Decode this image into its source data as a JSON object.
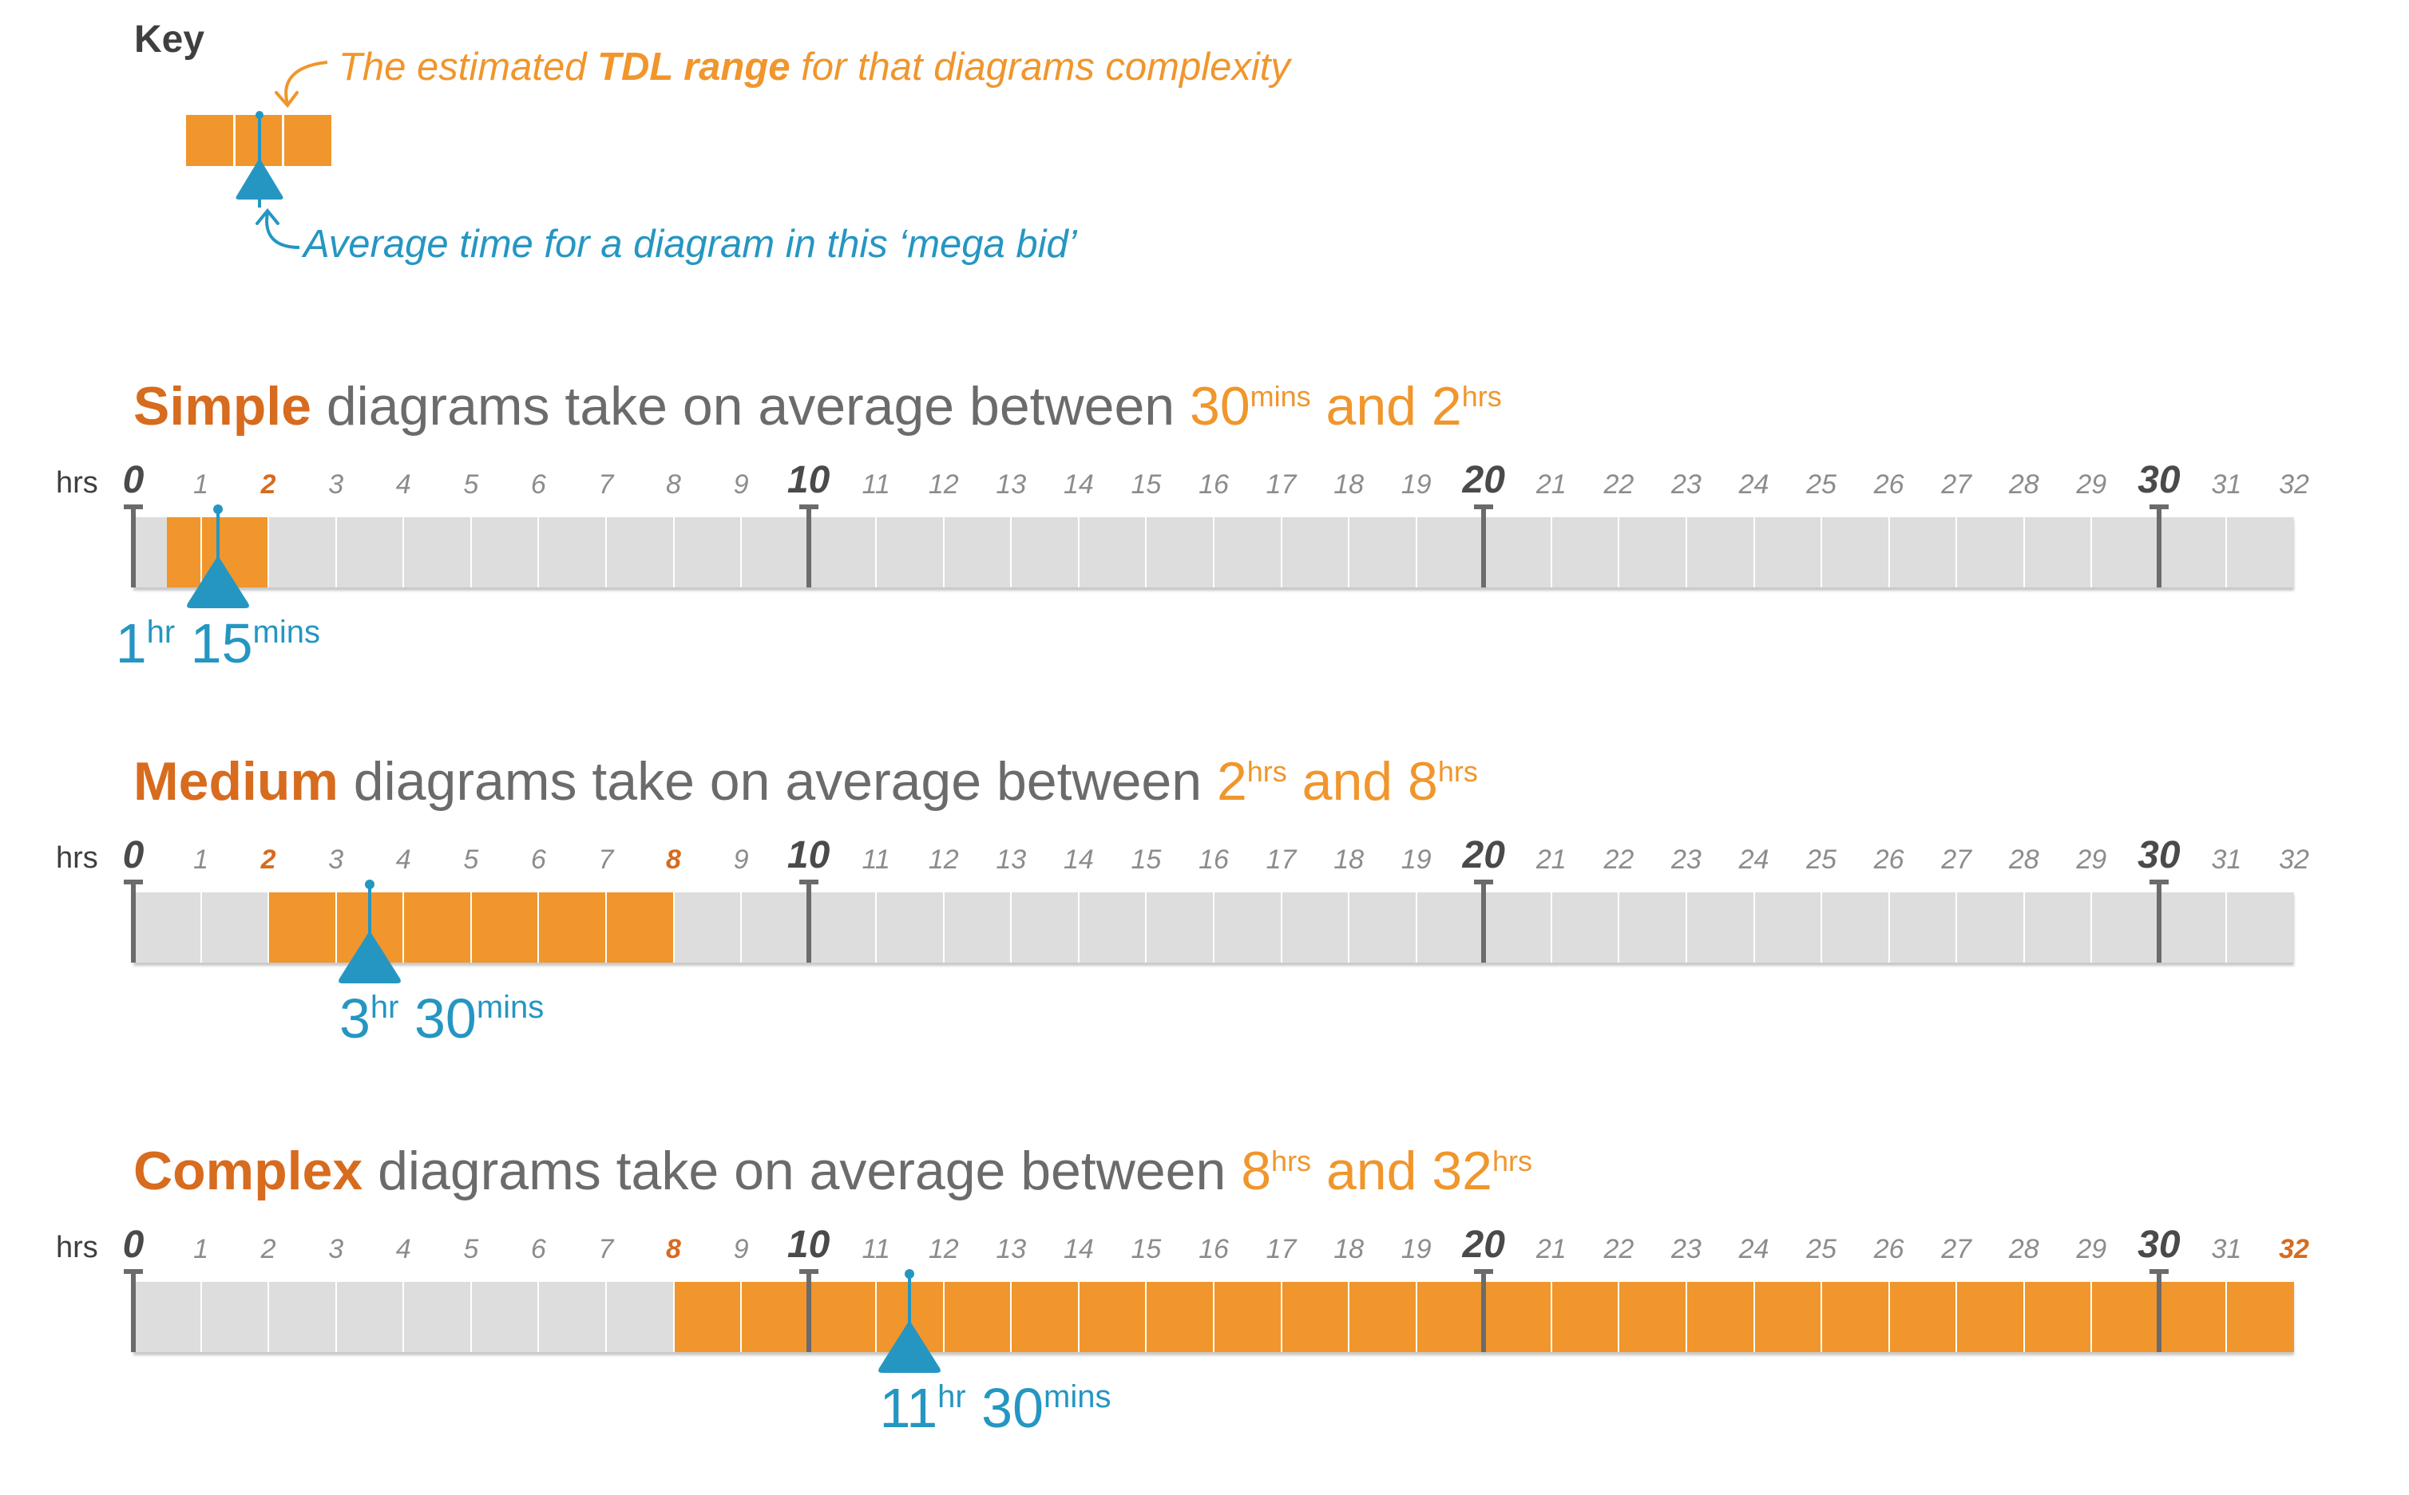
{
  "key": {
    "title": "Key",
    "range_text_pre": "The estimated ",
    "range_text_bold": "TDL range",
    "range_text_post": " for that diagrams complexity",
    "avg_text": "Average time for a diagram in this ‘mega bid’"
  },
  "colors": {
    "range": "#f0962c",
    "category": "#d76b1e",
    "average_marker": "#2596c2",
    "track": "#dddddd",
    "heading_grey": "#6b6b6b"
  },
  "axis": {
    "unit_label": "hrs",
    "min": 0,
    "max": 32,
    "major_ticks": [
      0,
      10,
      20,
      30
    ],
    "icons": {
      "marker": "triangle-marker-icon",
      "post": "timeline-post-icon"
    }
  },
  "chart_data": [
    {
      "category": "Simple",
      "heading_middle": " diagrams take on average between ",
      "low_value": "30",
      "low_unit": "mins",
      "joiner": " and ",
      "high_value": "2",
      "high_unit": "hrs",
      "range_start": 0.5,
      "range_end": 2,
      "average": 1.25,
      "avg_hours": "1",
      "avg_hours_unit": "hr",
      "avg_mins": "15",
      "avg_mins_unit": "mins",
      "highlight_ticks": [
        2
      ]
    },
    {
      "category": "Medium",
      "heading_middle": " diagrams take on average between ",
      "low_value": "2",
      "low_unit": "hrs",
      "joiner": " and ",
      "high_value": "8",
      "high_unit": "hrs",
      "range_start": 2,
      "range_end": 8,
      "average": 3.5,
      "avg_hours": "3",
      "avg_hours_unit": "hr",
      "avg_mins": "30",
      "avg_mins_unit": "mins",
      "highlight_ticks": [
        2,
        8
      ]
    },
    {
      "category": "Complex",
      "heading_middle": " diagrams take on average between ",
      "low_value": "8",
      "low_unit": "hrs",
      "joiner": " and ",
      "high_value": "32",
      "high_unit": "hrs",
      "range_start": 8,
      "range_end": 32,
      "average": 11.5,
      "avg_hours": "11",
      "avg_hours_unit": "hr",
      "avg_mins": "30",
      "avg_mins_unit": "mins",
      "highlight_ticks": [
        8,
        32
      ]
    }
  ]
}
